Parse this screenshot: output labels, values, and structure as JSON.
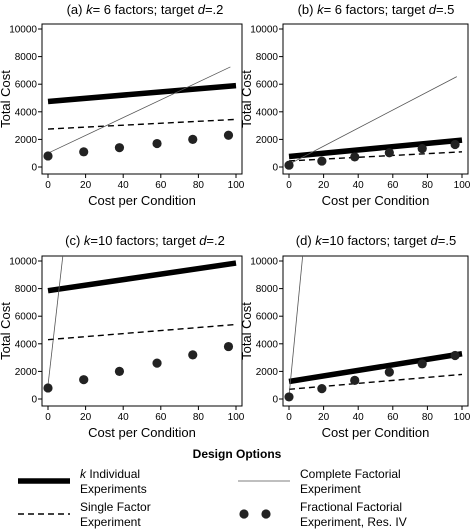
{
  "chart_data": [
    {
      "type": "line",
      "title_prefix": "(a) ",
      "title_k": "k",
      "title_rest": "= 6 factors; target ",
      "title_d": "d",
      "title_end": "=.2",
      "xlabel": "Cost per Condition",
      "ylabel": "Total Cost",
      "xlim": [
        0,
        100
      ],
      "ylim": [
        0,
        10000
      ],
      "xticks": [
        "0",
        "20",
        "40",
        "60",
        "80",
        "100"
      ],
      "yticks": [
        "0",
        "2000",
        "4000",
        "6000",
        "8000",
        "10000"
      ],
      "series": [
        {
          "name": "individual",
          "x": [
            0,
            100
          ],
          "y": [
            4750,
            5900
          ]
        },
        {
          "name": "single",
          "x": [
            0,
            100
          ],
          "y": [
            2750,
            3450
          ]
        },
        {
          "name": "complete",
          "x": [
            0,
            97
          ],
          "y": [
            1000,
            7250
          ]
        },
        {
          "name": "fractional",
          "x": [
            0,
            19,
            38,
            58,
            77,
            96
          ],
          "y": [
            800,
            1100,
            1400,
            1700,
            2000,
            2300
          ]
        }
      ]
    },
    {
      "type": "line",
      "title_prefix": "(b) ",
      "title_k": "k",
      "title_rest": "= 6 factors; target ",
      "title_d": "d",
      "title_end": "=.5",
      "xlabel": "Cost per Condition",
      "ylabel": "Total Cost",
      "xlim": [
        0,
        100
      ],
      "ylim": [
        0,
        10000
      ],
      "xticks": [
        "0",
        "20",
        "40",
        "60",
        "80",
        "100"
      ],
      "yticks": [
        "0",
        "2000",
        "4000",
        "6000",
        "8000",
        "10000"
      ],
      "series": [
        {
          "name": "individual",
          "x": [
            0,
            100
          ],
          "y": [
            760,
            1950
          ]
        },
        {
          "name": "single",
          "x": [
            0,
            100
          ],
          "y": [
            440,
            1100
          ]
        },
        {
          "name": "complete",
          "x": [
            0,
            97
          ],
          "y": [
            200,
            6550
          ]
        },
        {
          "name": "fractional",
          "x": [
            0,
            19,
            38,
            58,
            77,
            96
          ],
          "y": [
            130,
            430,
            730,
            1030,
            1330,
            1630
          ]
        }
      ]
    },
    {
      "type": "line",
      "title_prefix": "(c) ",
      "title_k": "k",
      "title_rest": "=10 factors; target ",
      "title_d": "d",
      "title_end": "=.2",
      "xlabel": "Cost per Condition",
      "ylabel": "Total Cost",
      "xlim": [
        0,
        100
      ],
      "ylim": [
        0,
        10000
      ],
      "xticks": [
        "0",
        "20",
        "40",
        "60",
        "80",
        "100"
      ],
      "yticks": [
        "0",
        "2000",
        "4000",
        "6000",
        "8000",
        "10000"
      ],
      "series": [
        {
          "name": "individual",
          "x": [
            0,
            100
          ],
          "y": [
            7850,
            9850
          ]
        },
        {
          "name": "single",
          "x": [
            0,
            100
          ],
          "y": [
            4300,
            5400
          ]
        },
        {
          "name": "complete",
          "x": [
            0,
            8
          ],
          "y": [
            1000,
            10500
          ]
        },
        {
          "name": "fractional",
          "x": [
            0,
            19,
            38,
            58,
            77,
            96
          ],
          "y": [
            800,
            1400,
            2000,
            2600,
            3200,
            3800
          ]
        }
      ]
    },
    {
      "type": "line",
      "title_prefix": "(d) ",
      "title_k": "k",
      "title_rest": "=10 factors; target ",
      "title_d": "d",
      "title_end": "=.5",
      "xlabel": "Cost per Condition",
      "ylabel": "Total Cost",
      "xlim": [
        0,
        100
      ],
      "ylim": [
        0,
        10000
      ],
      "xticks": [
        "0",
        "20",
        "40",
        "60",
        "80",
        "100"
      ],
      "yticks": [
        "0",
        "2000",
        "4000",
        "6000",
        "8000",
        "10000"
      ],
      "series": [
        {
          "name": "individual",
          "x": [
            0,
            100
          ],
          "y": [
            1270,
            3280
          ]
        },
        {
          "name": "single",
          "x": [
            0,
            100
          ],
          "y": [
            700,
            1780
          ]
        },
        {
          "name": "complete",
          "x": [
            0,
            8
          ],
          "y": [
            200,
            10500
          ]
        },
        {
          "name": "fractional",
          "x": [
            0,
            19,
            38,
            58,
            77,
            96
          ],
          "y": [
            150,
            750,
            1350,
            1950,
            2550,
            3150
          ]
        }
      ]
    }
  ],
  "legend": {
    "title": "Design Options",
    "items": [
      {
        "key": "individual",
        "line1_k": "k",
        "line1": " Individual",
        "line2": "Experiments"
      },
      {
        "key": "complete",
        "line1_k": "",
        "line1": "Complete Factorial",
        "line2": "Experiment"
      },
      {
        "key": "single",
        "line1_k": "",
        "line1": "Single Factor",
        "line2": "Experiment"
      },
      {
        "key": "fractional",
        "line1_k": "",
        "line1": "Fractional Factorial",
        "line2": "Experiment, Res. IV"
      }
    ]
  }
}
